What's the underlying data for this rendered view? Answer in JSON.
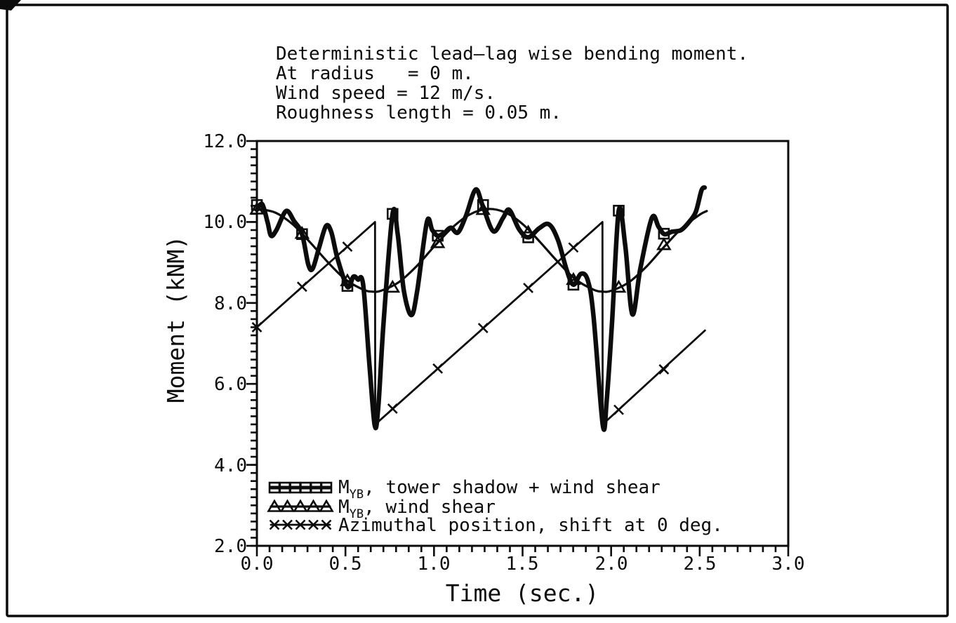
{
  "header": {
    "lines": [
      "Deterministic lead–lag wise bending moment.",
      "At radius   = 0 m.",
      "Wind speed = 12 m/s.",
      "Roughness length = 0.05 m."
    ]
  },
  "axes": {
    "x": {
      "label": "Time (sec.)",
      "min": 0,
      "max": 3,
      "tick_labels": [
        "0.0",
        "0.5",
        "1.0",
        "1.5",
        "2.0",
        "2.5",
        "3.0"
      ],
      "major_step": 0.5,
      "minor_divisions_per_major": 7
    },
    "y": {
      "label": "Moment (kNM)",
      "min": 2,
      "max": 12,
      "tick_labels": [
        "12.0",
        "10.0",
        "8.0",
        "6.0",
        "4.0",
        "2.0"
      ],
      "major_step": 2.0,
      "minor_step": 0.2
    }
  },
  "legend": {
    "items": [
      {
        "prefix": "M",
        "sub": "YB",
        "rest": ", tower shadow + wind shear",
        "marker": "square"
      },
      {
        "prefix": "M",
        "sub": "YB",
        "rest": ", wind shear",
        "marker": "triangle"
      },
      {
        "rest": "Azimuthal position, shift at 0 deg.",
        "marker": "x"
      }
    ]
  },
  "chart_data": {
    "type": "line",
    "title": "Deterministic lead–lag wise bending moment",
    "xlabel": "Time (sec.)",
    "ylabel": "Moment (kNM)",
    "xlim": [
      0,
      3
    ],
    "ylim": [
      2,
      12
    ],
    "grid": false,
    "legend_position": "inside-bottom-left",
    "series": [
      {
        "name": "MYB, tower shadow + wind shear",
        "marker": "square",
        "smooth": true,
        "points": [
          [
            0.0,
            10.3
          ],
          [
            0.03,
            10.44
          ],
          [
            0.06,
            10.0
          ],
          [
            0.08,
            9.66
          ],
          [
            0.11,
            9.8
          ],
          [
            0.165,
            10.27
          ],
          [
            0.21,
            10.02
          ],
          [
            0.255,
            9.7
          ],
          [
            0.29,
            8.95
          ],
          [
            0.315,
            8.85
          ],
          [
            0.35,
            9.35
          ],
          [
            0.39,
            9.9
          ],
          [
            0.42,
            9.75
          ],
          [
            0.455,
            9.1
          ],
          [
            0.511,
            8.4
          ],
          [
            0.545,
            8.65
          ],
          [
            0.57,
            8.58
          ],
          [
            0.6,
            8.45
          ],
          [
            0.635,
            6.5
          ],
          [
            0.665,
            4.98
          ],
          [
            0.685,
            5.4
          ],
          [
            0.715,
            7.5
          ],
          [
            0.766,
            10.2
          ],
          [
            0.795,
            9.7
          ],
          [
            0.83,
            8.3
          ],
          [
            0.872,
            7.7
          ],
          [
            0.905,
            8.3
          ],
          [
            0.96,
            10.0
          ],
          [
            0.99,
            9.8
          ],
          [
            1.021,
            9.66
          ],
          [
            1.06,
            9.74
          ],
          [
            1.095,
            9.86
          ],
          [
            1.135,
            9.74
          ],
          [
            1.18,
            10.15
          ],
          [
            1.235,
            10.8
          ],
          [
            1.275,
            10.4
          ],
          [
            1.335,
            9.77
          ],
          [
            1.39,
            10.1
          ],
          [
            1.425,
            10.3
          ],
          [
            1.48,
            9.82
          ],
          [
            1.532,
            9.62
          ],
          [
            1.595,
            9.85
          ],
          [
            1.65,
            9.94
          ],
          [
            1.7,
            9.55
          ],
          [
            1.75,
            8.8
          ],
          [
            1.787,
            8.45
          ],
          [
            1.83,
            8.72
          ],
          [
            1.868,
            8.56
          ],
          [
            1.9,
            7.7
          ],
          [
            1.953,
            4.98
          ],
          [
            1.975,
            5.6
          ],
          [
            2.005,
            7.5
          ],
          [
            2.043,
            10.28
          ],
          [
            2.08,
            9.4
          ],
          [
            2.12,
            7.72
          ],
          [
            2.165,
            8.85
          ],
          [
            2.23,
            10.1
          ],
          [
            2.268,
            9.88
          ],
          [
            2.3,
            9.7
          ],
          [
            2.345,
            9.76
          ],
          [
            2.395,
            9.8
          ],
          [
            2.44,
            10.0
          ],
          [
            2.478,
            10.25
          ],
          [
            2.51,
            10.78
          ],
          [
            2.528,
            10.85
          ]
        ],
        "marker_points": [
          [
            0.0,
            10.42
          ],
          [
            0.255,
            9.7
          ],
          [
            0.511,
            8.42
          ],
          [
            0.766,
            10.2
          ],
          [
            1.021,
            9.66
          ],
          [
            1.277,
            10.42
          ],
          [
            1.532,
            9.62
          ],
          [
            1.787,
            8.45
          ],
          [
            2.043,
            10.28
          ],
          [
            2.298,
            9.71
          ]
        ]
      },
      {
        "name": "MYB, wind shear",
        "marker": "triangle",
        "smooth": true,
        "points": [
          [
            0.0,
            10.32
          ],
          [
            0.1,
            10.24
          ],
          [
            0.2,
            9.95
          ],
          [
            0.3,
            9.5
          ],
          [
            0.4,
            9.01
          ],
          [
            0.5,
            8.58
          ],
          [
            0.6,
            8.33
          ],
          [
            0.65,
            8.28
          ],
          [
            0.7,
            8.3
          ],
          [
            0.8,
            8.51
          ],
          [
            0.9,
            8.9
          ],
          [
            1.0,
            9.39
          ],
          [
            1.1,
            9.85
          ],
          [
            1.2,
            10.18
          ],
          [
            1.3,
            10.32
          ],
          [
            1.4,
            10.24
          ],
          [
            1.5,
            9.95
          ],
          [
            1.6,
            9.5
          ],
          [
            1.7,
            9.01
          ],
          [
            1.8,
            8.58
          ],
          [
            1.9,
            8.33
          ],
          [
            1.95,
            8.28
          ],
          [
            2.0,
            8.3
          ],
          [
            2.1,
            8.51
          ],
          [
            2.2,
            8.9
          ],
          [
            2.3,
            9.39
          ],
          [
            2.4,
            9.85
          ],
          [
            2.5,
            10.18
          ],
          [
            2.54,
            10.27
          ]
        ],
        "marker_points": [
          [
            0.0,
            10.32
          ],
          [
            0.255,
            9.72
          ],
          [
            0.511,
            8.55
          ],
          [
            0.766,
            8.39
          ],
          [
            1.021,
            9.49
          ],
          [
            1.277,
            10.31
          ],
          [
            1.532,
            9.75
          ],
          [
            1.787,
            8.58
          ],
          [
            2.043,
            8.39
          ],
          [
            2.298,
            9.44
          ]
        ]
      },
      {
        "name": "Azimuthal position, shift at 0 deg.",
        "marker": "x",
        "smooth": false,
        "points": [
          [
            0.0,
            7.4
          ],
          [
            0.667,
            10.0
          ],
          [
            0.668,
            5.0
          ],
          [
            1.951,
            10.0
          ],
          [
            1.952,
            5.0
          ],
          [
            2.53,
            7.32
          ]
        ],
        "marker_points": [
          [
            0.0,
            7.4
          ],
          [
            0.255,
            8.4
          ],
          [
            0.511,
            9.39
          ],
          [
            0.766,
            5.39
          ],
          [
            1.021,
            6.38
          ],
          [
            1.277,
            7.38
          ],
          [
            1.532,
            8.37
          ],
          [
            1.787,
            9.37
          ],
          [
            2.043,
            5.36
          ],
          [
            2.298,
            6.36
          ]
        ]
      }
    ]
  }
}
